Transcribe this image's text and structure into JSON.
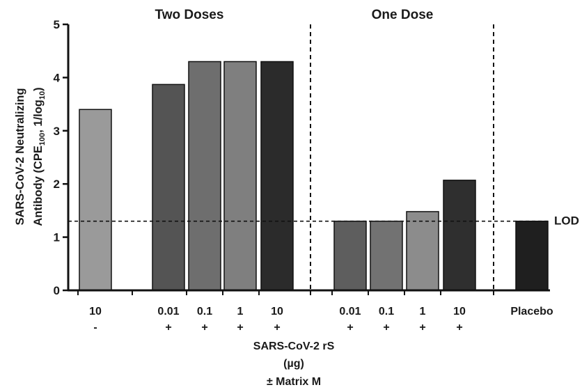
{
  "chart_data": {
    "type": "bar",
    "group_titles": [
      "Two Doses",
      "One Dose"
    ],
    "ylabel_line1": "SARS-CoV-2 Neutralizing",
    "ylabel_line2_pre": "Antibody (CPE",
    "ylabel_line2_sub1": "100",
    "ylabel_line2_mid": ", 1/log",
    "ylabel_line2_sub2": "10",
    "ylabel_line2_post": ")",
    "xlabel_lines": [
      "SARS-CoV-2 rS",
      "(µg)",
      "± Matrix M"
    ],
    "ylim": [
      0,
      5
    ],
    "yticks": [
      "0",
      "1",
      "2",
      "3",
      "4",
      "5"
    ],
    "reference_line": {
      "label": "LOD",
      "value": 1.3
    },
    "categories": [
      {
        "dose": "10",
        "matrix": "-",
        "value": 3.4,
        "color": "#9a9a9a"
      },
      {
        "dose": "0.01",
        "matrix": "+",
        "value": 3.87,
        "color": "#545454"
      },
      {
        "dose": "0.1",
        "matrix": "+",
        "value": 4.3,
        "color": "#6e6e6e"
      },
      {
        "dose": "1",
        "matrix": "+",
        "value": 4.3,
        "color": "#7f7f7f"
      },
      {
        "dose": "10",
        "matrix": "+",
        "value": 4.3,
        "color": "#2b2b2b"
      },
      {
        "dose": "0.01",
        "matrix": "+",
        "value": 1.3,
        "color": "#5e5e5e"
      },
      {
        "dose": "0.1",
        "matrix": "+",
        "value": 1.3,
        "color": "#727272"
      },
      {
        "dose": "1",
        "matrix": "+",
        "value": 1.48,
        "color": "#8c8c8c"
      },
      {
        "dose": "10",
        "matrix": "+",
        "value": 2.07,
        "color": "#2f2f2f"
      },
      {
        "dose": "Placebo",
        "matrix": "",
        "value": 1.3,
        "color": "#1f1f1f"
      }
    ]
  }
}
